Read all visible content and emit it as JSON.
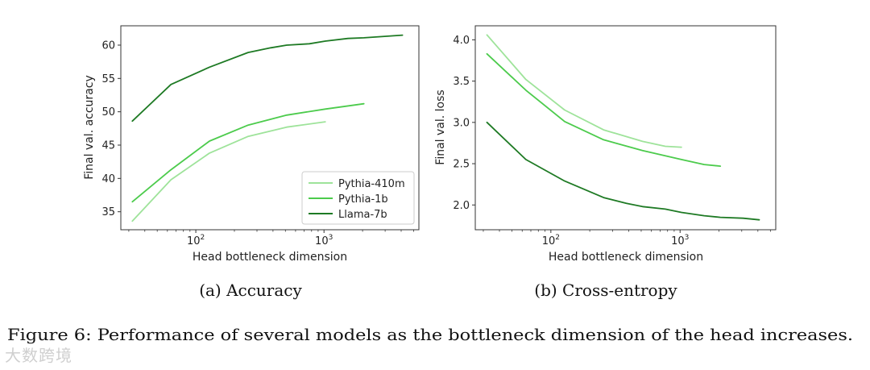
{
  "figure": {
    "caption": "Figure 6: Performance of several models as the bottleneck dimension of the head increases.",
    "watermark": "大数跨境"
  },
  "colors": {
    "Pythia-410m": "#9ee39a",
    "Pythia-1b": "#4ccb4c",
    "Llama-7b": "#1e7a24"
  },
  "chart_data": [
    {
      "type": "line",
      "subtitle": "(a) Accuracy",
      "xlabel": "Head bottleneck dimension",
      "ylabel": "Final val. accuracy",
      "xscale": "log",
      "xlim": [
        26,
        5500
      ],
      "ylim": [
        32.3,
        62.9
      ],
      "xticks": [
        {
          "value": 100,
          "label": "10",
          "exp": "2"
        },
        {
          "value": 1000,
          "label": "10",
          "exp": "3"
        }
      ],
      "yticks": [
        35,
        40,
        45,
        50,
        55,
        60
      ],
      "legend": "bottom-right",
      "series": [
        {
          "name": "Pythia-410m",
          "x": [
            32,
            64,
            128,
            256,
            512,
            1024
          ],
          "y": [
            33.6,
            39.8,
            43.8,
            46.3,
            47.7,
            48.5
          ]
        },
        {
          "name": "Pythia-1b",
          "x": [
            32,
            64,
            128,
            256,
            512,
            1024,
            2048
          ],
          "y": [
            36.5,
            41.3,
            45.6,
            48.0,
            49.5,
            50.4,
            51.2
          ]
        },
        {
          "name": "Llama-7b",
          "x": [
            32,
            64,
            128,
            256,
            384,
            512,
            768,
            1024,
            1536,
            2048,
            4096
          ],
          "y": [
            48.6,
            54.1,
            56.7,
            58.9,
            59.6,
            60.0,
            60.2,
            60.6,
            61.0,
            61.1,
            61.5
          ]
        }
      ]
    },
    {
      "type": "line",
      "subtitle": "(b) Cross-entropy",
      "xlabel": "Head bottleneck dimension",
      "ylabel": "Final val. loss",
      "xscale": "log",
      "xlim": [
        26,
        5500
      ],
      "ylim": [
        1.7,
        4.17
      ],
      "xticks": [
        {
          "value": 100,
          "label": "10",
          "exp": "2"
        },
        {
          "value": 1000,
          "label": "10",
          "exp": "3"
        }
      ],
      "yticks": [
        2.0,
        2.5,
        3.0,
        3.5,
        4.0
      ],
      "legend": "none",
      "series": [
        {
          "name": "Pythia-410m",
          "x": [
            32,
            64,
            128,
            256,
            512,
            768,
            1024
          ],
          "y": [
            4.06,
            3.52,
            3.15,
            2.91,
            2.77,
            2.71,
            2.7
          ]
        },
        {
          "name": "Pythia-1b",
          "x": [
            32,
            64,
            128,
            256,
            512,
            1024,
            1536,
            2048
          ],
          "y": [
            3.83,
            3.39,
            3.01,
            2.79,
            2.66,
            2.55,
            2.49,
            2.47
          ]
        },
        {
          "name": "Llama-7b",
          "x": [
            32,
            64,
            128,
            256,
            384,
            512,
            768,
            1024,
            1536,
            2048,
            3072,
            4096
          ],
          "y": [
            3.0,
            2.55,
            2.29,
            2.09,
            2.02,
            1.98,
            1.95,
            1.91,
            1.87,
            1.85,
            1.84,
            1.82
          ]
        }
      ]
    }
  ]
}
